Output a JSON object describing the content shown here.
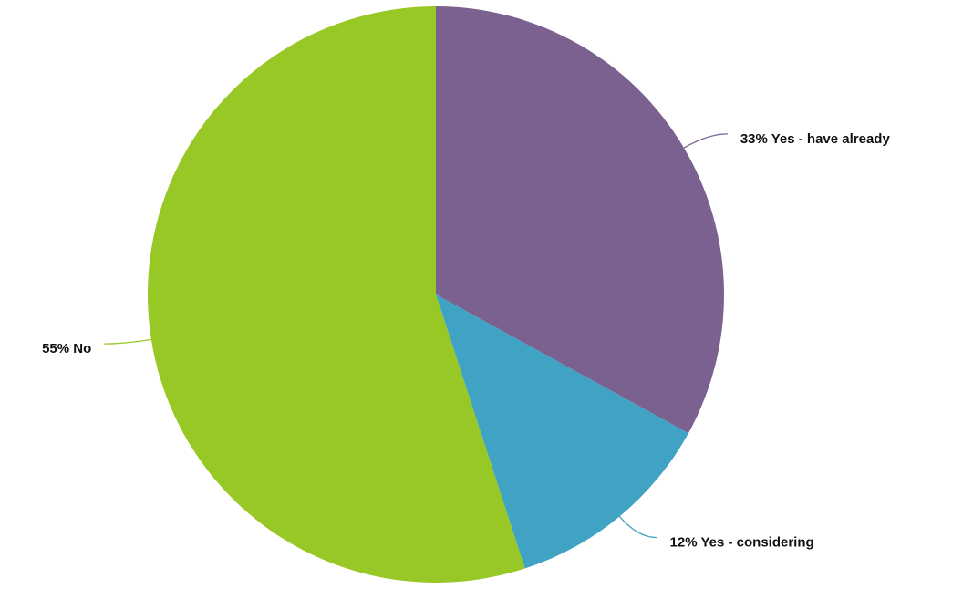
{
  "chart_data": {
    "type": "pie",
    "values": [
      33,
      12,
      55
    ],
    "value_labels": [
      "33% Yes - have already",
      "12% Yes - considering",
      "55% No"
    ],
    "colors": [
      "#7b6190",
      "#40a3c3",
      "#98c825"
    ]
  }
}
